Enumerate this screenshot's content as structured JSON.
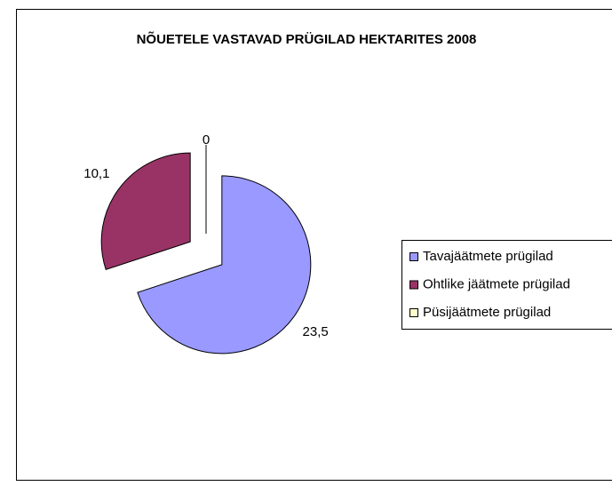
{
  "chart_data": {
    "type": "pie",
    "title": "NÕUETELE VASTAVAD PRÜGILAD HEKTARITES 2008",
    "categories": [
      "Tavajäätmete prügilad",
      "Ohtlike jäätmete prügilad",
      "Püsijäätmete prügilad"
    ],
    "values": [
      23.5,
      10.1,
      0
    ],
    "value_labels": [
      "23,5",
      "10,1",
      "0"
    ],
    "colors": [
      "#9999ff",
      "#993366",
      "#ffffcc"
    ],
    "legend": "right"
  }
}
